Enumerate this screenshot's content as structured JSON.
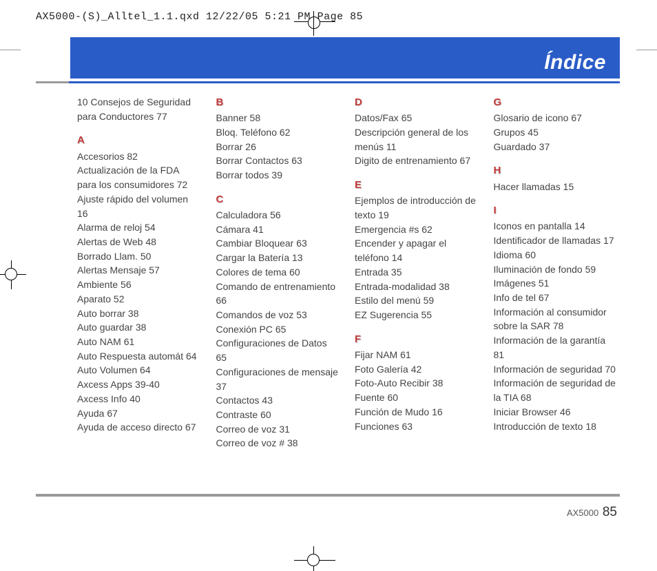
{
  "header": {
    "file_meta": "AX5000-(S)_Alltel_1.1.qxd  12/22/05  5:21 PM  Page 85",
    "title": "Índice"
  },
  "footer": {
    "model": "AX5000",
    "page_number": "85"
  },
  "columns": [
    {
      "blocks": [
        {
          "entries": [
            "10 Consejos de Seguridad para Conductores 77"
          ]
        },
        {
          "letter": "A",
          "entries": [
            "Accesorios 82",
            "Actualización de la FDA para los consumidores 72",
            "Ajuste rápido del volumen 16",
            "Alarma de reloj 54",
            "Alertas de Web 48",
            "Borrado Llam. 50",
            "Alertas Mensaje 57",
            "Ambiente 56",
            "Aparato 52",
            "Auto borrar 38",
            "Auto guardar 38",
            "Auto NAM 61",
            "Auto Respuesta automát 64",
            "Auto Volumen 64",
            "Axcess Apps 39-40",
            "Axcess Info 40",
            "Ayuda 67",
            "Ayuda de acceso directo 67"
          ]
        }
      ]
    },
    {
      "blocks": [
        {
          "letter": "B",
          "entries": [
            "Banner 58",
            "Bloq. Teléfono 62",
            "Borrar 26",
            "Borrar Contactos 63",
            "Borrar todos 39"
          ]
        },
        {
          "letter": "C",
          "entries": [
            "Calculadora 56",
            "Cámara 41",
            "Cambiar Bloquear 63",
            "Cargar la Batería 13",
            "Colores de tema 60",
            "Comando de entrenamiento 66",
            "Comandos de voz 53",
            "Conexión PC 65",
            "Configuraciones de Datos 65",
            "Configuraciones de mensaje 37",
            "Contactos 43",
            "Contraste 60",
            "Correo de voz 31",
            "Correo de voz # 38"
          ]
        }
      ]
    },
    {
      "blocks": [
        {
          "letter": "D",
          "entries": [
            "Datos/Fax 65",
            "Descripción general de los menús 11",
            "Digito de entrenamiento 67"
          ]
        },
        {
          "letter": "E",
          "entries": [
            "Ejemplos de introducción de texto 19",
            "Emergencia #s 62",
            "Encender y apagar el teléfono 14",
            "Entrada 35",
            "Entrada-modalidad 38",
            "Estilo del menú 59",
            "EZ Sugerencia 55"
          ]
        },
        {
          "letter": "F",
          "entries": [
            "Fijar NAM 61",
            "Foto Galería 42",
            "Foto-Auto Recibir 38",
            "Fuente 60",
            "Función de Mudo 16",
            "Funciones 63"
          ]
        }
      ]
    },
    {
      "blocks": [
        {
          "letter": "G",
          "entries": [
            "Glosario de icono 67",
            "Grupos 45",
            "Guardado 37"
          ]
        },
        {
          "letter": "H",
          "entries": [
            "Hacer llamadas 15"
          ]
        },
        {
          "letter": "I",
          "entries": [
            "Iconos en pantalla 14",
            "Identificador de llamadas 17",
            "Idioma 60",
            "Iluminación de fondo 59",
            "Imágenes 51",
            "Info de tel 67",
            "Información al consumidor sobre la SAR 78",
            "Información de la garantía 81",
            "Información de seguridad 70",
            "Información de seguridad de la TIA 68",
            "Iniciar Browser 46",
            "Introducción de texto 18"
          ]
        }
      ]
    }
  ]
}
